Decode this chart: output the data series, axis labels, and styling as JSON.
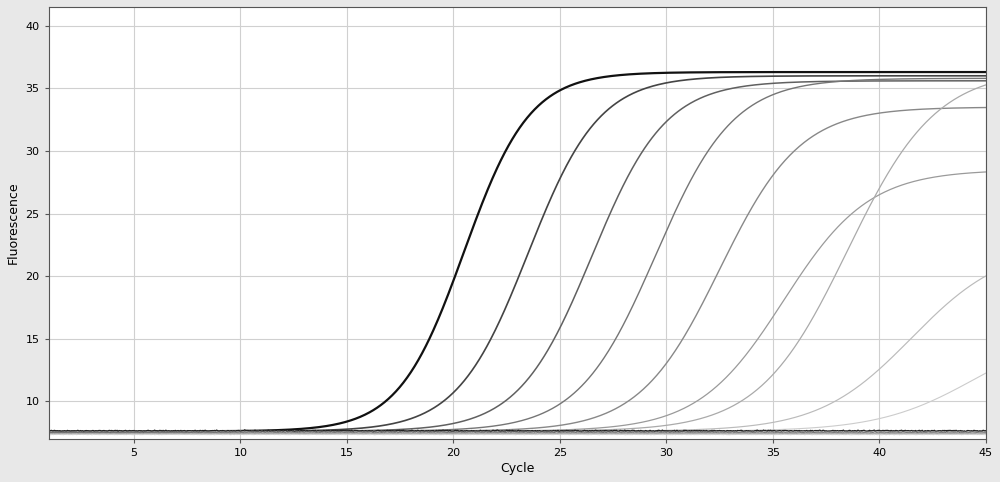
{
  "xlabel": "Cycle",
  "ylabel": "Fluorescence",
  "xlim": [
    1,
    45
  ],
  "ylim": [
    7.0,
    41.5
  ],
  "xticks": [
    5,
    10,
    15,
    20,
    25,
    30,
    35,
    40,
    45
  ],
  "yticks": [
    10,
    15,
    20,
    25,
    30,
    35,
    40
  ],
  "background_color": "#e8e8e8",
  "plot_background": "#ffffff",
  "grid_color": "#d0d0d0",
  "curves": [
    {
      "ct": 20.5,
      "ymin": 7.6,
      "ymax": 36.3,
      "color": "#111111",
      "lw": 1.6,
      "k": 0.65
    },
    {
      "ct": 23.5,
      "ymin": 7.6,
      "ymax": 36.0,
      "color": "#444444",
      "lw": 1.2,
      "k": 0.6
    },
    {
      "ct": 26.5,
      "ymin": 7.6,
      "ymax": 35.6,
      "color": "#606060",
      "lw": 1.1,
      "k": 0.58
    },
    {
      "ct": 29.5,
      "ymin": 7.6,
      "ymax": 35.8,
      "color": "#757575",
      "lw": 1.0,
      "k": 0.55
    },
    {
      "ct": 32.5,
      "ymin": 7.6,
      "ymax": 33.5,
      "color": "#888888",
      "lw": 1.0,
      "k": 0.53
    },
    {
      "ct": 35.5,
      "ymin": 7.6,
      "ymax": 28.5,
      "color": "#9a9a9a",
      "lw": 0.9,
      "k": 0.5
    },
    {
      "ct": 38.5,
      "ymin": 7.6,
      "ymax": 36.5,
      "color": "#aaaaaa",
      "lw": 0.9,
      "k": 0.48
    },
    {
      "ct": 41.5,
      "ymin": 7.6,
      "ymax": 22.5,
      "color": "#bbbbbb",
      "lw": 0.85,
      "k": 0.46
    },
    {
      "ct": 44.5,
      "ymin": 7.6,
      "ymax": 16.0,
      "color": "#cccccc",
      "lw": 0.8,
      "k": 0.44
    }
  ],
  "flat_curves": [
    {
      "color": "#222222",
      "lw": 0.9,
      "yval": 7.65,
      "noise": 0.04
    },
    {
      "color": "#555555",
      "lw": 0.7,
      "yval": 7.55,
      "noise": 0.03
    },
    {
      "color": "#777777",
      "lw": 0.65,
      "yval": 7.48,
      "noise": 0.025
    },
    {
      "color": "#999999",
      "lw": 0.6,
      "yval": 7.42,
      "noise": 0.02
    },
    {
      "color": "#bbbbbb",
      "lw": 0.55,
      "yval": 7.38,
      "noise": 0.02
    },
    {
      "color": "#cccccc",
      "lw": 0.5,
      "yval": 7.33,
      "noise": 0.015
    }
  ]
}
